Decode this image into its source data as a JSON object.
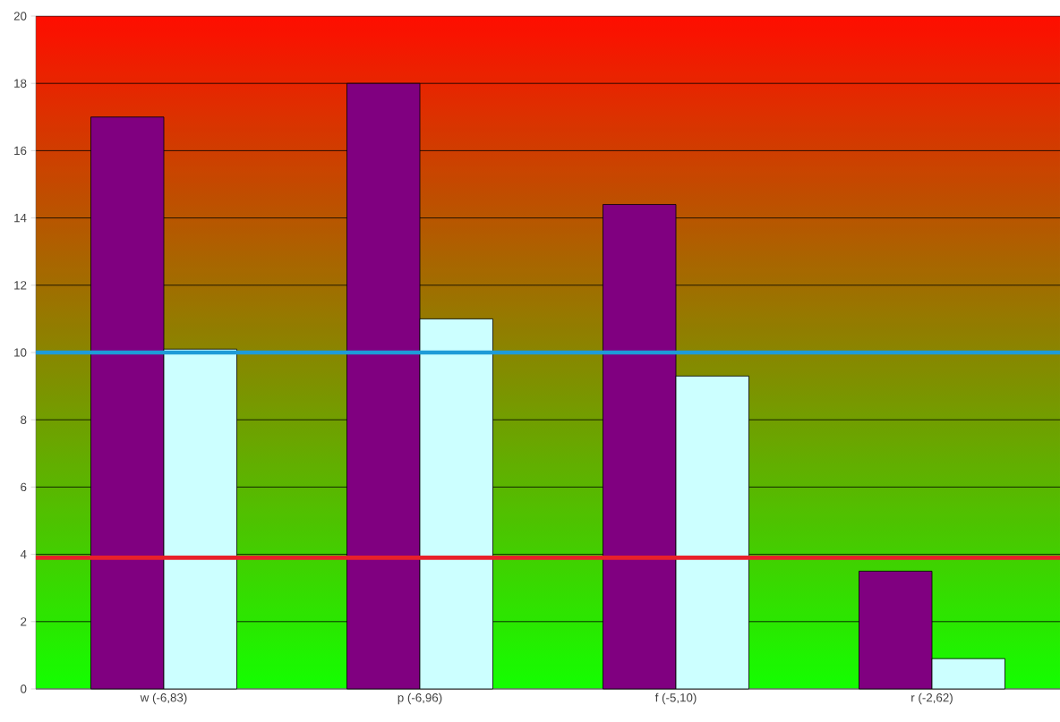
{
  "chart_data": {
    "type": "bar",
    "categories": [
      "w (-6,83)",
      "p (-6,96)",
      "f (-5,10)",
      "r (-2,62)"
    ],
    "series": [
      {
        "color": "#800080",
        "values": [
          17.0,
          18.0,
          14.4,
          3.5
        ]
      },
      {
        "color": "#ccffff",
        "values": [
          10.1,
          11.0,
          9.3,
          0.9
        ]
      }
    ],
    "ylim": [
      0,
      20
    ],
    "yticks": [
      0,
      2,
      4,
      6,
      8,
      10,
      12,
      14,
      16,
      18,
      20
    ],
    "grid": "y",
    "ref_lines": [
      {
        "axis": "y",
        "value": 10,
        "color": "#1e9bd7"
      },
      {
        "axis": "y",
        "value": 3.9,
        "color": "#e8202a"
      }
    ]
  }
}
